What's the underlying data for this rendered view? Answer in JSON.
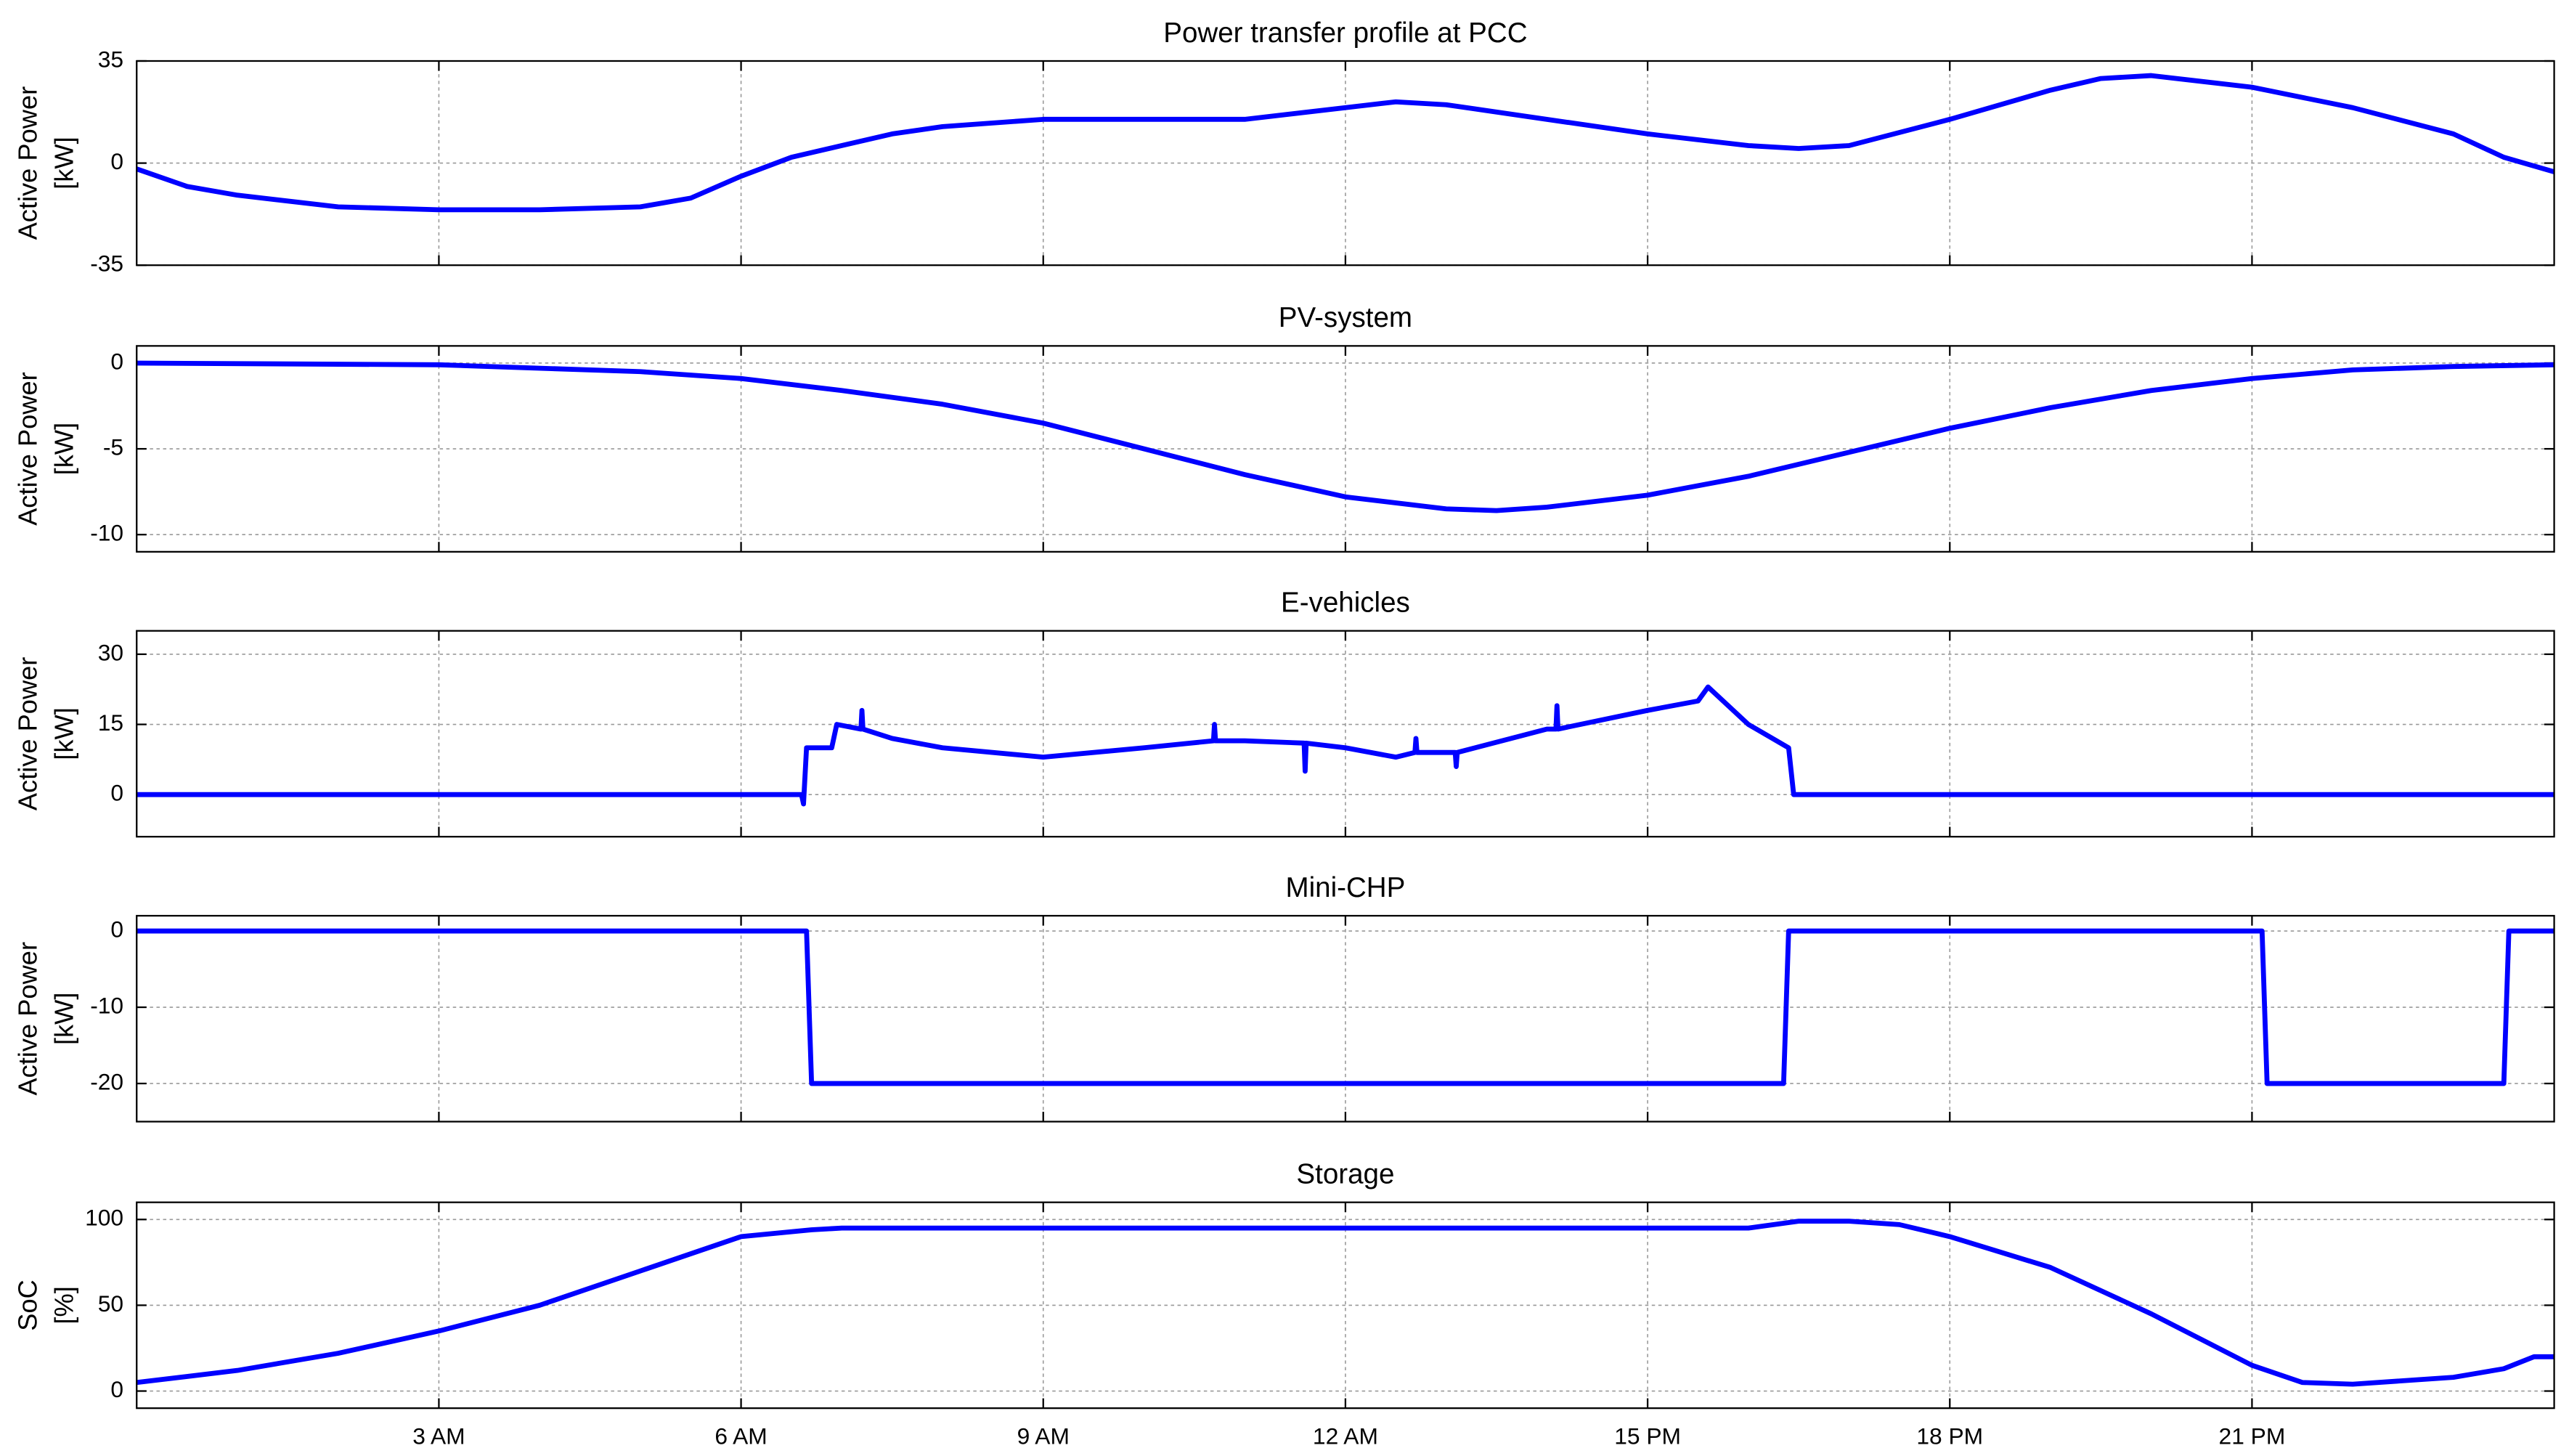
{
  "chart_data": [
    {
      "type": "line",
      "title": "Power transfer profile at PCC",
      "ylabel": [
        "Active Power",
        "[kW]"
      ],
      "color": "#0000ff",
      "grid": true,
      "x": [
        0,
        0.5,
        1,
        2,
        3,
        4,
        5,
        5.5,
        6,
        6.5,
        7,
        7.5,
        8,
        9,
        10,
        11,
        12,
        12.5,
        13,
        14,
        15,
        16,
        16.5,
        17,
        18,
        19,
        19.5,
        20,
        21,
        22,
        23,
        23.5,
        24
      ],
      "values": [
        -2,
        -8,
        -11,
        -15,
        -16,
        -16,
        -15,
        -12,
        -4.5,
        2,
        6,
        10,
        12.5,
        15,
        15,
        15,
        19,
        21,
        20,
        15,
        10,
        6,
        5,
        6,
        15,
        25,
        29,
        30,
        26,
        19,
        10,
        2,
        -3
      ],
      "xlim": [
        0,
        24
      ],
      "xticks": [
        3,
        6,
        9,
        12,
        15,
        18,
        21
      ],
      "ylim": [
        -35,
        35
      ],
      "yticks": [
        -35,
        0,
        35
      ]
    },
    {
      "type": "line",
      "title": "PV-system",
      "ylabel": [
        "Active Power",
        "[kW]"
      ],
      "color": "#0000ff",
      "grid": true,
      "x": [
        0,
        3,
        5,
        6,
        7,
        8,
        9,
        10,
        11,
        12,
        13,
        13.5,
        14,
        15,
        16,
        17,
        18,
        19,
        20,
        21,
        22,
        23,
        24
      ],
      "values": [
        0,
        -0.1,
        -0.5,
        -0.9,
        -1.6,
        -2.4,
        -3.5,
        -5,
        -6.5,
        -7.8,
        -8.5,
        -8.6,
        -8.4,
        -7.7,
        -6.6,
        -5.2,
        -3.8,
        -2.6,
        -1.6,
        -0.9,
        -0.4,
        -0.2,
        -0.1
      ],
      "xlim": [
        0,
        24
      ],
      "xticks": [
        3,
        6,
        9,
        12,
        15,
        18,
        21
      ],
      "ylim": [
        -11,
        1
      ],
      "yticks": [
        -10,
        -5,
        0
      ]
    },
    {
      "type": "line",
      "title": "E-vehicles",
      "ylabel": [
        "Active Power",
        "[kW]"
      ],
      "color": "#0000ff",
      "grid": true,
      "x": [
        0,
        6.6,
        6.62,
        6.65,
        6.9,
        6.95,
        7.19,
        7.2,
        7.21,
        7.5,
        8,
        9,
        10,
        10.69,
        10.7,
        10.71,
        11,
        11.59,
        11.6,
        11.61,
        12,
        12.5,
        12.69,
        12.7,
        12.71,
        13,
        13.09,
        13.1,
        13.11,
        14,
        14.09,
        14.1,
        14.11,
        15,
        15.5,
        15.6,
        16,
        16.4,
        16.45,
        24
      ],
      "values": [
        0,
        0,
        -2,
        10,
        10,
        15,
        14,
        18,
        14,
        12,
        10,
        8,
        10,
        11.5,
        15,
        11.5,
        11.5,
        11,
        5,
        11,
        10,
        8,
        9,
        12,
        9,
        9,
        9,
        6,
        9,
        14,
        14,
        19,
        14,
        18,
        20,
        23,
        15,
        10,
        0,
        0
      ],
      "xlim": [
        0,
        24
      ],
      "xticks": [
        3,
        6,
        9,
        12,
        15,
        18,
        21
      ],
      "ylim": [
        -9,
        35
      ],
      "yticks": [
        0,
        15,
        30
      ]
    },
    {
      "type": "line",
      "title": "Mini-CHP",
      "ylabel": [
        "Active Power",
        "[kW]"
      ],
      "color": "#0000ff",
      "grid": true,
      "x": [
        0,
        6.65,
        6.7,
        16.35,
        16.4,
        21.1,
        21.15,
        23.5,
        23.55,
        24
      ],
      "values": [
        0,
        0,
        -20,
        -20,
        0,
        0,
        -20,
        -20,
        0,
        0
      ],
      "xlim": [
        0,
        24
      ],
      "xticks": [
        3,
        6,
        9,
        12,
        15,
        18,
        21
      ],
      "ylim": [
        -25,
        2
      ],
      "yticks": [
        -20,
        -10,
        0
      ]
    },
    {
      "type": "line",
      "title": "Storage",
      "ylabel": [
        "SoC",
        "[%]"
      ],
      "color": "#0000ff",
      "grid": true,
      "x": [
        0,
        1,
        2,
        3,
        4,
        5,
        6,
        6.7,
        7,
        16,
        16.5,
        17,
        17.5,
        18,
        19,
        20,
        21,
        21.5,
        22,
        23,
        23.5,
        23.8,
        24
      ],
      "values": [
        5,
        12,
        22,
        35,
        50,
        70,
        90,
        94,
        95,
        95,
        99,
        99,
        97,
        90,
        72,
        45,
        15,
        5,
        4,
        8,
        13,
        20,
        20
      ],
      "xlim": [
        0,
        24
      ],
      "xticks": [
        {
          "value": 3,
          "label": "3 AM"
        },
        {
          "value": 6,
          "label": "6 AM"
        },
        {
          "value": 9,
          "label": "9 AM"
        },
        {
          "value": 12,
          "label": "12 AM"
        },
        {
          "value": 15,
          "label": "15 PM"
        },
        {
          "value": 18,
          "label": "18 PM"
        },
        {
          "value": 21,
          "label": "21 PM"
        }
      ],
      "ylim": [
        -10,
        110
      ],
      "yticks": [
        0,
        50,
        100
      ]
    }
  ]
}
